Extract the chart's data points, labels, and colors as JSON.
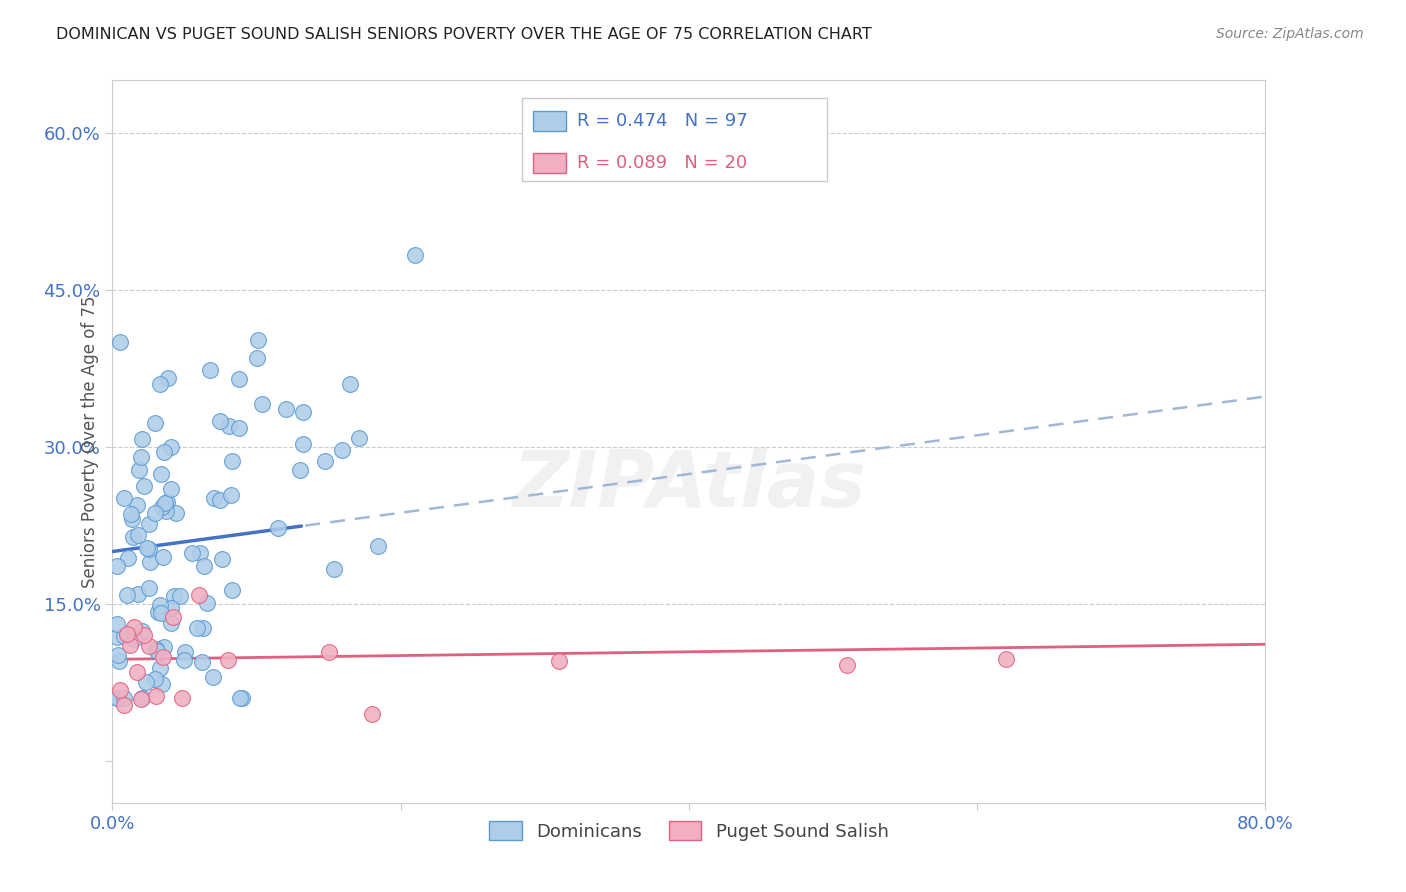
{
  "title": "DOMINICAN VS PUGET SOUND SALISH SENIORS POVERTY OVER THE AGE OF 75 CORRELATION CHART",
  "source": "Source: ZipAtlas.com",
  "ylabel": "Seniors Poverty Over the Age of 75",
  "watermark": "ZIPAtlas",
  "xlim": [
    0.0,
    0.8
  ],
  "ylim": [
    -0.04,
    0.65
  ],
  "series1": {
    "name": "Dominicans",
    "R": 0.474,
    "N": 97,
    "color": "#5b9bd5",
    "marker_facecolor": "#aecde8",
    "marker_edgecolor": "#5b9bd5",
    "line_color": "#4472c4",
    "line_intercept": 0.2,
    "line_slope": 0.185
  },
  "series2": {
    "name": "Puget Sound Salish",
    "R": 0.089,
    "N": 20,
    "color": "#e06080",
    "marker_facecolor": "#f0b0c0",
    "marker_edgecolor": "#e06080",
    "line_color": "#e06080",
    "line_intercept": 0.097,
    "line_slope": 0.018
  },
  "axis_color": "#4472c4",
  "grid_color": "#cccccc",
  "background_color": "#ffffff",
  "title_color": "#222222",
  "source_color": "#888888",
  "ylabel_color": "#555555",
  "xtick_positions": [
    0.0,
    0.2,
    0.4,
    0.6,
    0.8
  ],
  "xtick_labels": [
    "0.0%",
    "",
    "",
    "",
    "80.0%"
  ],
  "ytick_positions": [
    0.0,
    0.15,
    0.3,
    0.45,
    0.6
  ],
  "ytick_labels": [
    "",
    "15.0%",
    "30.0%",
    "45.0%",
    "60.0%"
  ]
}
